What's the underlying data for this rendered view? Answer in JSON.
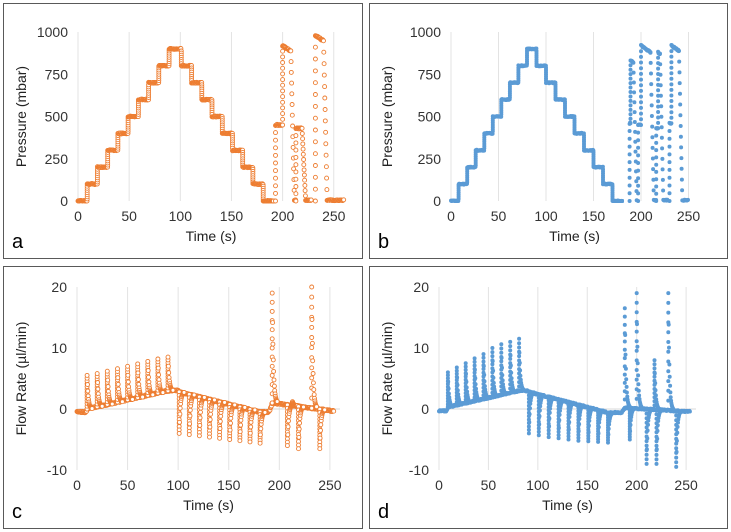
{
  "chart_data": [
    {
      "panel": "a",
      "type": "scatter",
      "color": "#ED7D31",
      "marker": "open-circle",
      "xlabel": "Time (s)",
      "ylabel": "Pressure (mbar)",
      "xlim": [
        0,
        260
      ],
      "ylim": [
        0,
        1000
      ],
      "xticks": [
        "0",
        "50",
        "100",
        "150",
        "200",
        "250"
      ],
      "yticks": [
        "0",
        "250",
        "500",
        "750",
        "1000"
      ],
      "grid": "vertical",
      "steps": [
        [
          0,
          0
        ],
        [
          9,
          100
        ],
        [
          19,
          200
        ],
        [
          29,
          300
        ],
        [
          39,
          400
        ],
        [
          49,
          500
        ],
        [
          59,
          600
        ],
        [
          69,
          700
        ],
        [
          79,
          800
        ],
        [
          89,
          900
        ],
        [
          101,
          800
        ],
        [
          111,
          700
        ],
        [
          121,
          600
        ],
        [
          131,
          500
        ],
        [
          141,
          400
        ],
        [
          151,
          300
        ],
        [
          161,
          200
        ],
        [
          171,
          100
        ],
        [
          181,
          0
        ],
        [
          191,
          0
        ]
      ],
      "bursts": [
        {
          "t_rise": 193,
          "low_level": 450,
          "high_level": 920,
          "t_high": 200,
          "t_fall": 208,
          "t_end": 213
        },
        {
          "t_rise": 213,
          "low_level": 430,
          "high_level": 0,
          "t_high": 0,
          "t_fall": 219,
          "t_end": 228
        },
        {
          "t_rise": 228,
          "low_level": 0,
          "high_level": 980,
          "t_high": 232,
          "t_fall": 240,
          "t_end": 260
        }
      ]
    },
    {
      "panel": "b",
      "type": "scatter",
      "color": "#5B9BD5",
      "marker": "filled-circle",
      "xlabel": "Time (s)",
      "ylabel": "Pressure (mbar)",
      "xlim": [
        0,
        260
      ],
      "ylim": [
        0,
        1000
      ],
      "xticks": [
        "0",
        "50",
        "100",
        "150",
        "200",
        "250"
      ],
      "yticks": [
        "0",
        "250",
        "500",
        "750",
        "1000"
      ],
      "grid": "vertical",
      "steps": [
        [
          0,
          0
        ],
        [
          8,
          100
        ],
        [
          17,
          200
        ],
        [
          26,
          300
        ],
        [
          35,
          400
        ],
        [
          44,
          500
        ],
        [
          53,
          600
        ],
        [
          62,
          700
        ],
        [
          71,
          800
        ],
        [
          80,
          900
        ],
        [
          90,
          800
        ],
        [
          100,
          700
        ],
        [
          110,
          600
        ],
        [
          120,
          500
        ],
        [
          130,
          400
        ],
        [
          140,
          300
        ],
        [
          150,
          200
        ],
        [
          160,
          100
        ],
        [
          170,
          0
        ],
        [
          180,
          0
        ]
      ],
      "bursts": [
        {
          "t_rise": 188,
          "low_level": 460,
          "high_level": 830,
          "t_high": 189,
          "t_fall": 192,
          "t_end": 196
        },
        {
          "t_rise": 197,
          "low_level": 450,
          "high_level": 920,
          "t_high": 200,
          "t_fall": 210,
          "t_end": 216
        },
        {
          "t_rise": 216,
          "low_level": 430,
          "high_level": 880,
          "t_high": 218,
          "t_fall": 220,
          "t_end": 228
        },
        {
          "t_rise": 230,
          "low_level": 460,
          "high_level": 920,
          "t_high": 232,
          "t_fall": 240,
          "t_end": 250
        }
      ]
    },
    {
      "panel": "c",
      "type": "scatter",
      "color": "#ED7D31",
      "marker": "open-circle",
      "xlabel": "Time (s)",
      "ylabel": "Flow Rate (µl/min)",
      "xlim": [
        0,
        260
      ],
      "ylim": [
        -10,
        20
      ],
      "xticks": [
        "0",
        "50",
        "100",
        "150",
        "200",
        "250"
      ],
      "yticks": [
        "-10",
        "0",
        "10",
        "20"
      ],
      "grid": "vertical",
      "spikes": [
        [
          10,
          5.5
        ],
        [
          20,
          5.8
        ],
        [
          30,
          6.2
        ],
        [
          40,
          6.6
        ],
        [
          50,
          7.0
        ],
        [
          60,
          7.4
        ],
        [
          70,
          7.8
        ],
        [
          80,
          8.2
        ],
        [
          90,
          8.5
        ],
        [
          101,
          -4.0
        ],
        [
          111,
          -4.2
        ],
        [
          121,
          -4.4
        ],
        [
          131,
          -4.6
        ],
        [
          141,
          -4.8
        ],
        [
          151,
          -5.0
        ],
        [
          161,
          -5.2
        ],
        [
          171,
          -5.4
        ],
        [
          181,
          -5.6
        ],
        [
          193,
          19.0
        ],
        [
          208,
          -6.0
        ],
        [
          213,
          1.2
        ],
        [
          219,
          -6.5
        ],
        [
          232,
          20.0
        ],
        [
          240,
          -6.5
        ]
      ],
      "baseline": [
        [
          0,
          -0.5
        ],
        [
          9,
          -0.5
        ],
        [
          10,
          0.0
        ],
        [
          90,
          3.0
        ],
        [
          100,
          3.0
        ],
        [
          101,
          2.8
        ],
        [
          181,
          -0.5
        ],
        [
          190,
          -0.5
        ],
        [
          193,
          1.0
        ],
        [
          260,
          -0.5
        ]
      ]
    },
    {
      "panel": "d",
      "type": "scatter",
      "color": "#5B9BD5",
      "marker": "filled-circle",
      "xlabel": "Time (s)",
      "ylabel": "Flow Rate (µl/min)",
      "xlim": [
        0,
        260
      ],
      "ylim": [
        -10,
        20
      ],
      "xticks": [
        "0",
        "50",
        "100",
        "150",
        "200",
        "250"
      ],
      "yticks": [
        "-10",
        "0",
        "10",
        "20"
      ],
      "grid": "vertical",
      "spikes": [
        [
          9,
          6.0
        ],
        [
          18,
          6.8
        ],
        [
          27,
          7.5
        ],
        [
          36,
          8.3
        ],
        [
          45,
          9.0
        ],
        [
          54,
          10.0
        ],
        [
          63,
          10.6
        ],
        [
          72,
          11.0
        ],
        [
          81,
          11.5
        ],
        [
          91,
          -4.0
        ],
        [
          101,
          -4.3
        ],
        [
          111,
          -4.6
        ],
        [
          121,
          -4.8
        ],
        [
          131,
          -5.0
        ],
        [
          141,
          -5.2
        ],
        [
          151,
          -5.3
        ],
        [
          161,
          -5.4
        ],
        [
          171,
          -5.5
        ],
        [
          188,
          16.5
        ],
        [
          193,
          -5.0
        ],
        [
          200,
          19.0
        ],
        [
          210,
          -9.0
        ],
        [
          218,
          8.0
        ],
        [
          220,
          -9.0
        ],
        [
          232,
          19.0
        ],
        [
          240,
          -9.5
        ]
      ],
      "baseline": [
        [
          0,
          -0.3
        ],
        [
          8,
          -0.3
        ],
        [
          9,
          0.3
        ],
        [
          81,
          3.0
        ],
        [
          90,
          3.0
        ],
        [
          91,
          2.8
        ],
        [
          171,
          -0.6
        ],
        [
          185,
          -0.6
        ],
        [
          188,
          0.2
        ],
        [
          250,
          -0.4
        ]
      ]
    }
  ],
  "panel_labels": {
    "a": "a",
    "b": "b",
    "c": "c",
    "d": "d"
  }
}
